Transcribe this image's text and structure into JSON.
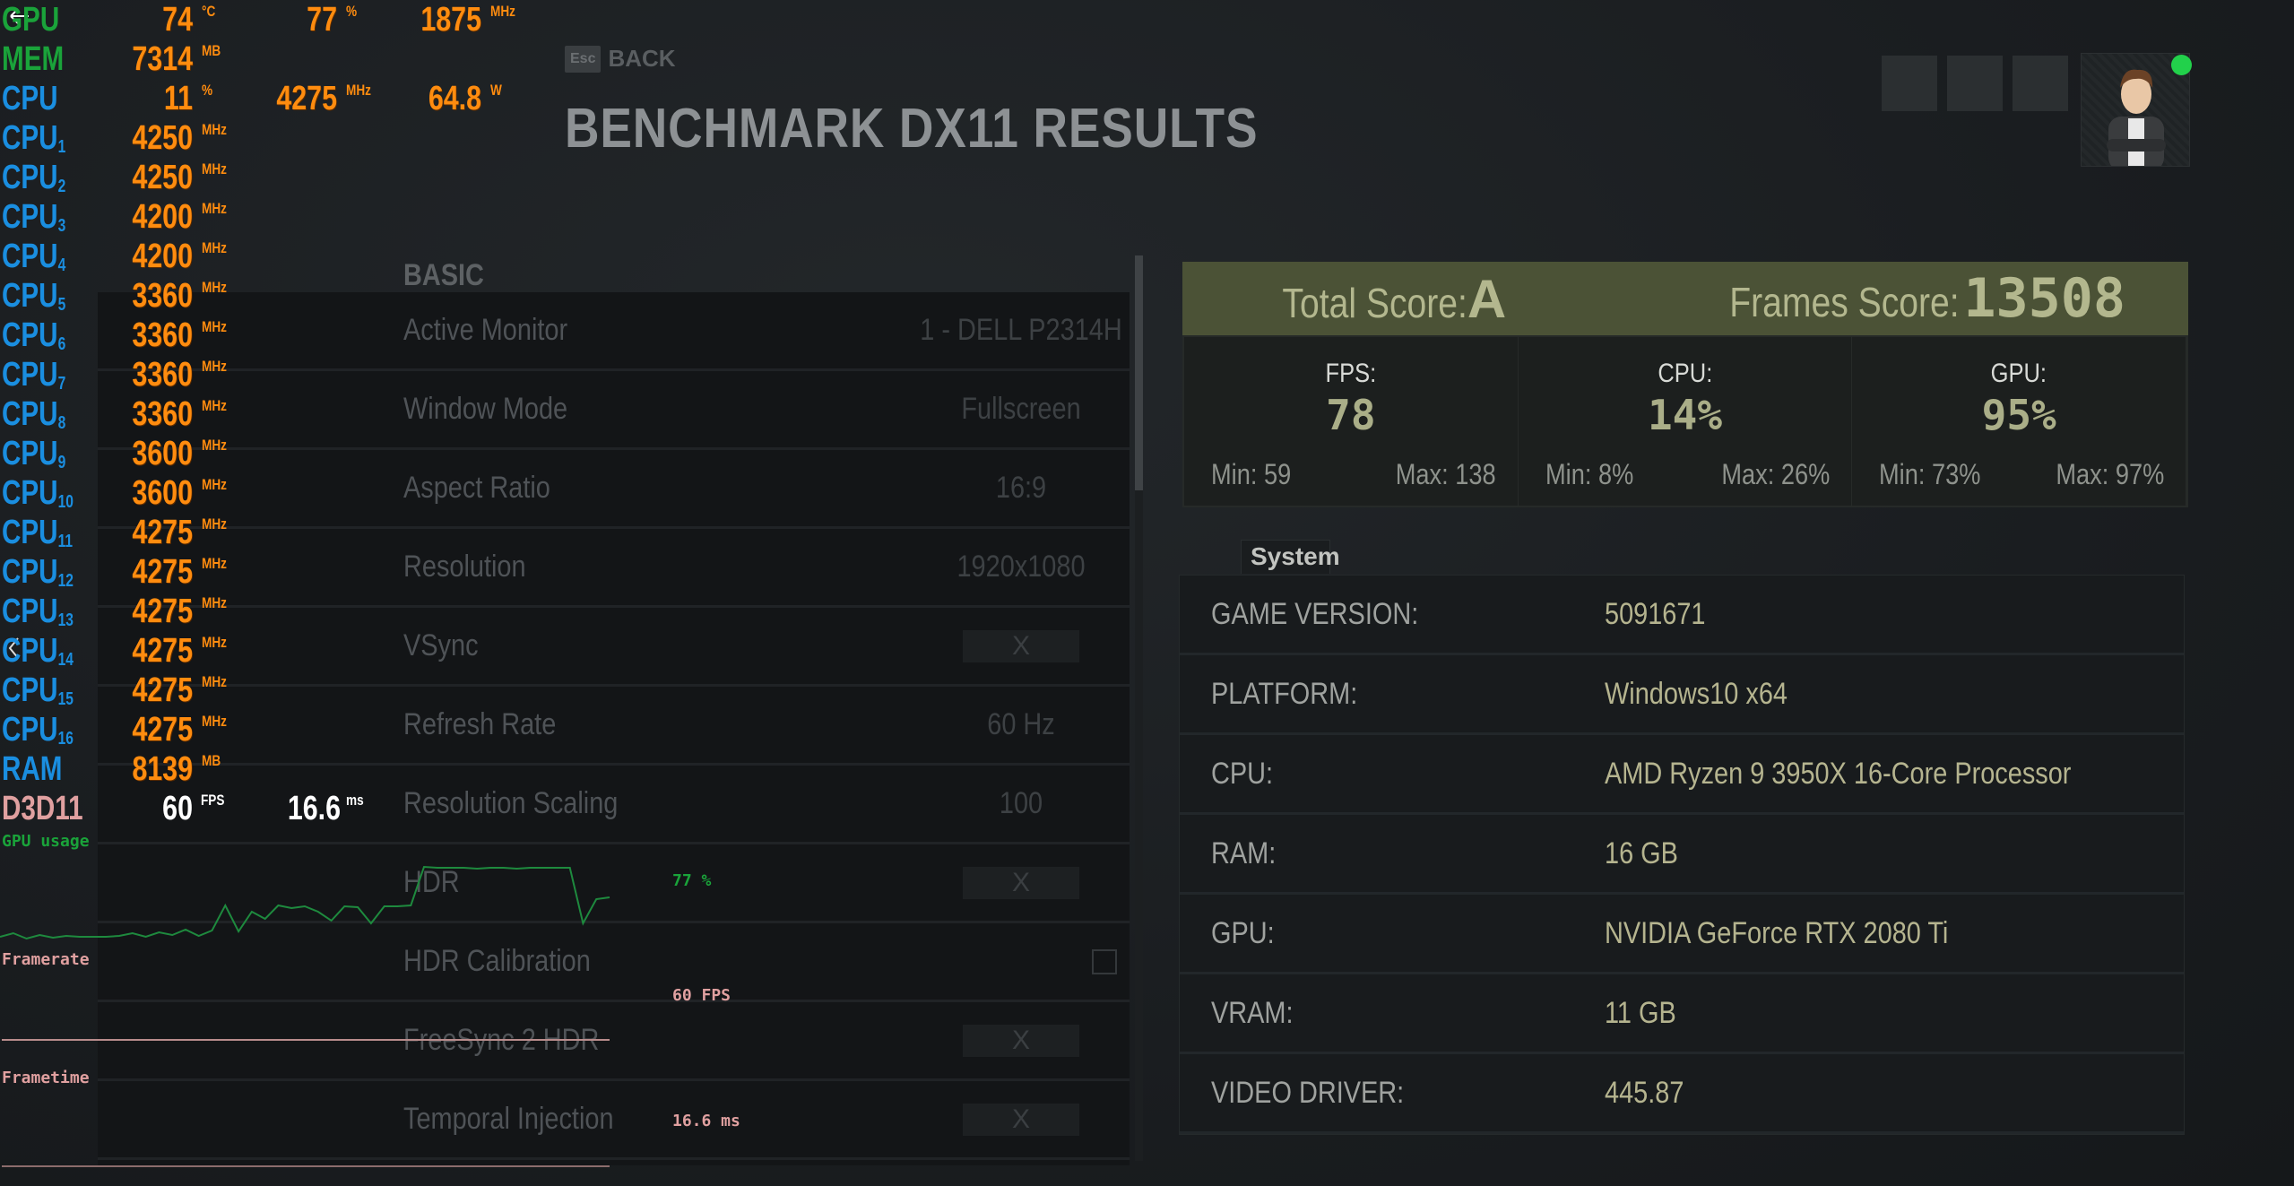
{
  "page": {
    "title": "BENCHMARK DX11 RESULTS",
    "back_key": "Esc",
    "back_label": "BACK",
    "section": "BASIC"
  },
  "settings": [
    {
      "label": "Active Monitor",
      "value": "1 - DELL P2314H",
      "type": "dropdown"
    },
    {
      "label": "Window Mode",
      "value": "Fullscreen",
      "type": "dropdown"
    },
    {
      "label": "Aspect Ratio",
      "value": "16:9",
      "type": "dropdown"
    },
    {
      "label": "Resolution",
      "value": "1920x1080",
      "type": "dropdown"
    },
    {
      "label": "VSync",
      "value": "X",
      "type": "toggle"
    },
    {
      "label": "Refresh Rate",
      "value": "60 Hz",
      "type": "dropdown"
    },
    {
      "label": "Resolution Scaling",
      "value": "100",
      "type": "stepper"
    },
    {
      "label": "HDR",
      "value": "X",
      "type": "toggle"
    },
    {
      "label": "HDR Calibration",
      "value": "",
      "type": "link"
    },
    {
      "label": "FreeSync 2 HDR",
      "value": "X",
      "type": "toggle"
    },
    {
      "label": "Temporal Injection",
      "value": "X",
      "type": "toggle"
    }
  ],
  "score": {
    "total_label": "Total Score:",
    "total": "A",
    "frames_label": "Frames Score:",
    "frames": "13508",
    "stats": [
      {
        "label": "FPS:",
        "value": "78",
        "min": "Min: 59",
        "max": "Max: 138"
      },
      {
        "label": "CPU:",
        "value": "14%",
        "min": "Min: 8%",
        "max": "Max: 26%"
      },
      {
        "label": "GPU:",
        "value": "95%",
        "min": "Min: 73%",
        "max": "Max: 97%"
      }
    ]
  },
  "system": {
    "tab": "System",
    "rows": [
      {
        "k": "GAME VERSION:",
        "v": "5091671"
      },
      {
        "k": "PLATFORM:",
        "v": "Windows10 x64"
      },
      {
        "k": "CPU:",
        "v": "AMD Ryzen 9 3950X 16-Core Processor"
      },
      {
        "k": "RAM:",
        "v": "16 GB"
      },
      {
        "k": "GPU:",
        "v": "NVIDIA GeForce RTX 2080 Ti"
      },
      {
        "k": "VRAM:",
        "v": "11 GB"
      },
      {
        "k": "VIDEO DRIVER:",
        "v": "445.87"
      }
    ]
  },
  "osd": {
    "colors": {
      "gpu": "#1aa33a",
      "cpu": "#1a8ee0",
      "value": "#ff8c0f",
      "d3d": "#e0a0a0"
    },
    "rows": [
      {
        "label": "GPU",
        "sub": "",
        "color": "#1aa33a",
        "cols": [
          [
            "74",
            "°C"
          ],
          [
            "77",
            "%"
          ],
          [
            "1875",
            "MHz"
          ]
        ]
      },
      {
        "label": "MEM",
        "sub": "",
        "color": "#1aa33a",
        "cols": [
          [
            "7314",
            "MB"
          ]
        ]
      },
      {
        "label": "CPU",
        "sub": "",
        "color": "#1a8ee0",
        "cols": [
          [
            "11",
            "%"
          ],
          [
            "4275",
            "MHz"
          ],
          [
            "64.8",
            "W"
          ]
        ]
      },
      {
        "label": "CPU",
        "sub": "1",
        "color": "#1a8ee0",
        "cols": [
          [
            "4250",
            "MHz"
          ]
        ]
      },
      {
        "label": "CPU",
        "sub": "2",
        "color": "#1a8ee0",
        "cols": [
          [
            "4250",
            "MHz"
          ]
        ]
      },
      {
        "label": "CPU",
        "sub": "3",
        "color": "#1a8ee0",
        "cols": [
          [
            "4200",
            "MHz"
          ]
        ]
      },
      {
        "label": "CPU",
        "sub": "4",
        "color": "#1a8ee0",
        "cols": [
          [
            "4200",
            "MHz"
          ]
        ]
      },
      {
        "label": "CPU",
        "sub": "5",
        "color": "#1a8ee0",
        "cols": [
          [
            "3360",
            "MHz"
          ]
        ]
      },
      {
        "label": "CPU",
        "sub": "6",
        "color": "#1a8ee0",
        "cols": [
          [
            "3360",
            "MHz"
          ]
        ]
      },
      {
        "label": "CPU",
        "sub": "7",
        "color": "#1a8ee0",
        "cols": [
          [
            "3360",
            "MHz"
          ]
        ]
      },
      {
        "label": "CPU",
        "sub": "8",
        "color": "#1a8ee0",
        "cols": [
          [
            "3360",
            "MHz"
          ]
        ]
      },
      {
        "label": "CPU",
        "sub": "9",
        "color": "#1a8ee0",
        "cols": [
          [
            "3600",
            "MHz"
          ]
        ]
      },
      {
        "label": "CPU",
        "sub": "10",
        "color": "#1a8ee0",
        "cols": [
          [
            "3600",
            "MHz"
          ]
        ]
      },
      {
        "label": "CPU",
        "sub": "11",
        "color": "#1a8ee0",
        "cols": [
          [
            "4275",
            "MHz"
          ]
        ]
      },
      {
        "label": "CPU",
        "sub": "12",
        "color": "#1a8ee0",
        "cols": [
          [
            "4275",
            "MHz"
          ]
        ]
      },
      {
        "label": "CPU",
        "sub": "13",
        "color": "#1a8ee0",
        "cols": [
          [
            "4275",
            "MHz"
          ]
        ]
      },
      {
        "label": "CPU",
        "sub": "14",
        "color": "#1a8ee0",
        "cols": [
          [
            "4275",
            "MHz"
          ]
        ]
      },
      {
        "label": "CPU",
        "sub": "15",
        "color": "#1a8ee0",
        "cols": [
          [
            "4275",
            "MHz"
          ]
        ]
      },
      {
        "label": "CPU",
        "sub": "16",
        "color": "#1a8ee0",
        "cols": [
          [
            "4275",
            "MHz"
          ]
        ]
      },
      {
        "label": "RAM",
        "sub": "",
        "color": "#1a8ee0",
        "cols": [
          [
            "8139",
            "MB"
          ]
        ]
      }
    ],
    "d3d": {
      "label": "D3D11",
      "fps": "60",
      "fps_unit": "FPS",
      "ms": "16.6",
      "ms_unit": "ms"
    },
    "graphs": {
      "gpu_label": "GPU usage",
      "gpu_value": "77 %",
      "framerate_label": "Framerate",
      "framerate_value": "60 FPS",
      "frametime_label": "Frametime",
      "frametime_value": "16.6 ms",
      "gpu_history": [
        20,
        24,
        18,
        22,
        19,
        21,
        20,
        20,
        20,
        21,
        24,
        20,
        25,
        22,
        28,
        21,
        27,
        55,
        26,
        48,
        40,
        55,
        52,
        54,
        48,
        38,
        54,
        53,
        35,
        54,
        54,
        55,
        98,
        97,
        97,
        97,
        96,
        97,
        97,
        96,
        97,
        97,
        97,
        97,
        35,
        62,
        64
      ]
    }
  }
}
